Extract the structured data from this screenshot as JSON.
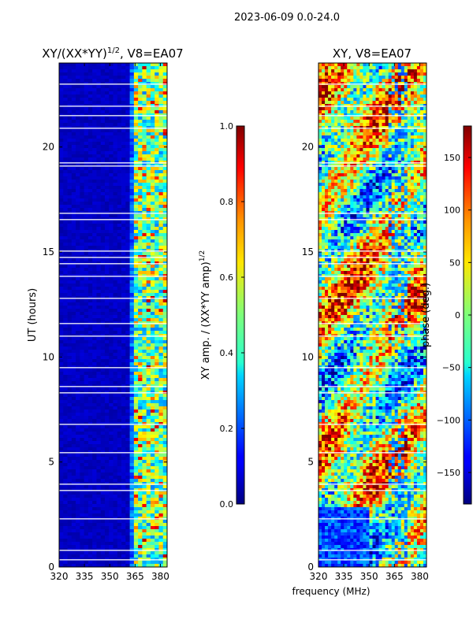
{
  "figure": {
    "suptitle": "2023-06-09 0.0-24.0",
    "xlabel_shared": "frequency (MHz)"
  },
  "chart_data": [
    {
      "type": "heatmap",
      "title_main": "XY/(XX*YY)",
      "title_exp": "1/2",
      "title_suffix": ", V8=EA07",
      "ylabel": "UT (hours)",
      "x_ticks": [
        320,
        335,
        350,
        365,
        380
      ],
      "x_tick_labels": [
        "320",
        "335",
        "350",
        "365",
        "380"
      ],
      "xlim": [
        320,
        384
      ],
      "y_ticks": [
        0,
        5,
        10,
        15,
        20
      ],
      "y_tick_labels": [
        "0",
        "5",
        "10",
        "15",
        "20"
      ],
      "ylim": [
        0,
        24
      ],
      "colorbar": {
        "label_main": "XY amp. / (XX*YY amp)",
        "label_exp": "1/2",
        "range": [
          0.0,
          1.0
        ],
        "ticks": [
          0.0,
          0.2,
          0.4,
          0.6,
          0.8,
          1.0
        ],
        "tick_labels": [
          "0.0",
          "0.2",
          "0.4",
          "0.6",
          "0.8",
          "1.0"
        ]
      }
    },
    {
      "type": "heatmap",
      "title": "XY, V8=EA07",
      "x_ticks": [
        320,
        335,
        350,
        365,
        380
      ],
      "x_tick_labels": [
        "320",
        "335",
        "350",
        "365",
        "380"
      ],
      "xlim": [
        320,
        384
      ],
      "y_ticks": [
        0,
        5,
        10,
        15,
        20
      ],
      "y_tick_labels": [
        "0",
        "5",
        "10",
        "15",
        "20"
      ],
      "ylim": [
        0,
        24
      ],
      "colorbar": {
        "label": "phase (deg.)",
        "range": [
          -180,
          180
        ],
        "ticks": [
          -150,
          -100,
          -50,
          0,
          50,
          100,
          150
        ],
        "tick_labels": [
          "−150",
          "−100",
          "−50",
          "0",
          "50",
          "100",
          "150"
        ]
      }
    }
  ]
}
